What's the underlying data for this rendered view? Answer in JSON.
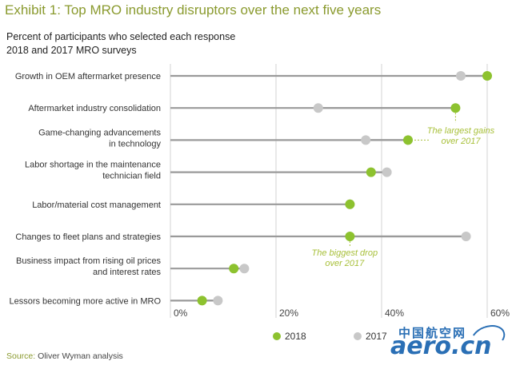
{
  "header": {
    "title": "Exhibit 1: Top MRO industry disruptors over the next five years",
    "subtitle_line1": "Percent of participants who selected each response",
    "subtitle_line2": "2018 and 2017 MRO surveys"
  },
  "source": {
    "label": "Source:",
    "text": "Oliver Wyman analysis"
  },
  "watermark": {
    "cn": "中国航空网",
    "en": "aero.cn"
  },
  "colors": {
    "s2018": "#8dc22f",
    "s2017": "#c8c8c8",
    "line": "#9a9a9a",
    "grid": "#d3d3d3",
    "accent": "#a8c03a"
  },
  "chart_data": {
    "type": "dumbbell",
    "title": "Exhibit 1: Top MRO industry disruptors over the next five years",
    "xlabel": "",
    "ylabel": "",
    "xlim": [
      0,
      60
    ],
    "x_ticks": [
      0,
      20,
      40,
      60
    ],
    "x_tick_labels": [
      "0%",
      "20%",
      "40%",
      "60%"
    ],
    "grid": true,
    "legend_position": "bottom",
    "categories": [
      [
        "Growth in OEM aftermarket presence"
      ],
      [
        "Aftermarket industry consolidation"
      ],
      [
        "Game-changing advancements",
        "in technology"
      ],
      [
        "Labor shortage in the maintenance",
        "technician field"
      ],
      [
        "Labor/material cost management"
      ],
      [
        "Changes to fleet plans and strategies"
      ],
      [
        "Business impact from rising oil prices",
        "and interest rates"
      ],
      [
        "Lessors becoming more active in MRO"
      ]
    ],
    "series": [
      {
        "name": "2018",
        "values": [
          60,
          54,
          45,
          38,
          34,
          34,
          12,
          6
        ]
      },
      {
        "name": "2017",
        "values": [
          55,
          28,
          37,
          41,
          34,
          56,
          14,
          9
        ]
      }
    ],
    "annotations": [
      {
        "lines": [
          "The largest gains",
          "over 2017"
        ],
        "x": 55,
        "row": 2
      },
      {
        "lines": [
          "The biggest drop",
          "over 2017"
        ],
        "x": 33,
        "row": 5
      }
    ]
  }
}
